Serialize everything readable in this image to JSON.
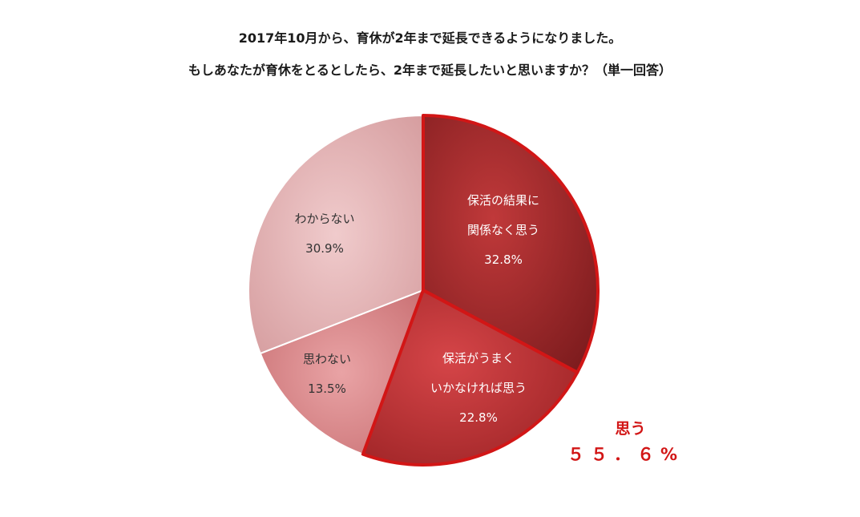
{
  "chart_data": {
    "type": "pie",
    "title": "2017年10月から、育休が2年まで延長できるようになりました。",
    "subtitle": "もしあなたが育休をとるとしたら、2年まで延長したいと思いますか？（単一回答）",
    "slices": [
      {
        "lines": [
          "保活の結果に",
          "関係なく思う"
        ],
        "value": 32.8,
        "value_label": "32.8%",
        "color": "#a52a2a",
        "highlighted": true
      },
      {
        "lines": [
          "保活がうまく",
          "いかなければ思う"
        ],
        "value": 22.8,
        "value_label": "22.8%",
        "color": "#c8393b",
        "highlighted": true
      },
      {
        "lines": [
          "思わない"
        ],
        "value": 13.5,
        "value_label": "13.5%",
        "color": "#d98a8c",
        "highlighted": false
      },
      {
        "lines": [
          "わからない"
        ],
        "value": 30.9,
        "value_label": "30.9%",
        "color": "#e3b0b2",
        "highlighted": false
      }
    ],
    "callout": {
      "label": "思う",
      "value": "５５．６%"
    },
    "highlight_color": "#d21616",
    "start": "12 o'clock, clockwise"
  }
}
